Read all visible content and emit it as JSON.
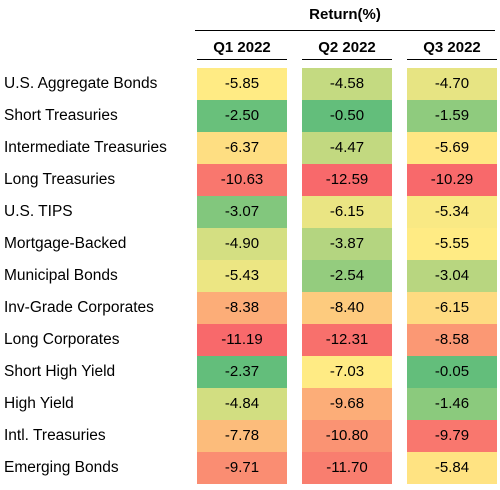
{
  "chart_data": {
    "type": "table",
    "header": "Return(%)",
    "columns": [
      "Q1 2022",
      "Q2 2022",
      "Q3 2022"
    ],
    "rows": [
      {
        "label": "U.S. Aggregate Bonds",
        "values": [
          "-5.85",
          "-4.58",
          "-4.70"
        ]
      },
      {
        "label": "Short Treasuries",
        "values": [
          "-2.50",
          "-0.50",
          "-1.59"
        ]
      },
      {
        "label": "Intermediate Treasuries",
        "values": [
          "-6.37",
          "-4.47",
          "-5.69"
        ]
      },
      {
        "label": "Long Treasuries",
        "values": [
          "-10.63",
          "-12.59",
          "-10.29"
        ]
      },
      {
        "label": "U.S. TIPS",
        "values": [
          "-3.07",
          "-6.15",
          "-5.34"
        ]
      },
      {
        "label": "Mortgage-Backed",
        "values": [
          "-4.90",
          "-3.87",
          "-5.55"
        ]
      },
      {
        "label": "Municipal Bonds",
        "values": [
          "-5.43",
          "-2.54",
          "-3.04"
        ]
      },
      {
        "label": "Inv-Grade Corporates",
        "values": [
          "-8.38",
          "-8.40",
          "-6.15"
        ]
      },
      {
        "label": "Long Corporates",
        "values": [
          "-11.19",
          "-12.31",
          "-8.58"
        ]
      },
      {
        "label": "Short High Yield",
        "values": [
          "-2.37",
          "-7.03",
          "-0.05"
        ]
      },
      {
        "label": "High Yield",
        "values": [
          "-4.84",
          "-9.68",
          "-1.46"
        ]
      },
      {
        "label": "Intl. Treasuries",
        "values": [
          "-7.78",
          "-10.80",
          "-9.79"
        ]
      },
      {
        "label": "Emerging Bonds",
        "values": [
          "-9.71",
          "-11.70",
          "-5.84"
        ]
      }
    ],
    "color_scale": {
      "low": "#f8696b",
      "mid": "#ffeb84",
      "high": "#63be7b"
    }
  }
}
